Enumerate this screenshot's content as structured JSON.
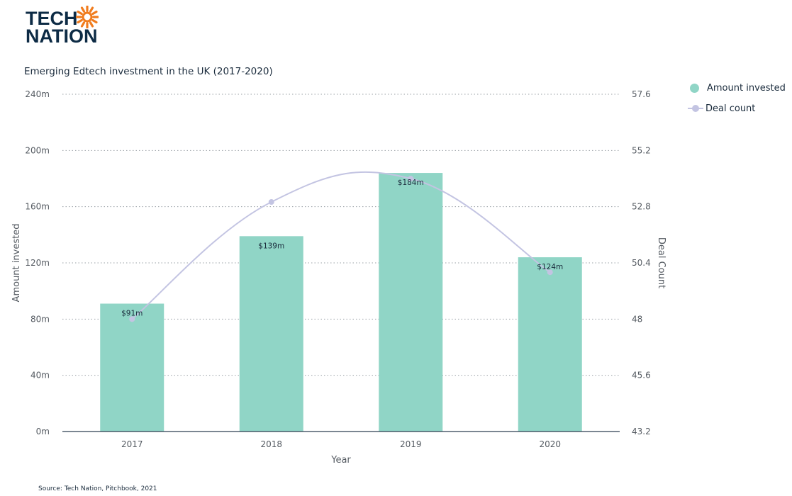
{
  "logo": {
    "line1": "TECH",
    "line2": "NATION",
    "sun_color": "#f07c1e"
  },
  "title": "Emerging Edtech investment in the UK (2017-2020)",
  "source": "Source: Tech Nation, Pitchbook, 2021",
  "colors": {
    "bar": "#90d5c6",
    "line": "#c3c4e2",
    "text": "#1a2b3c",
    "grid": "#9aa0a6",
    "axis": "#2c3e50"
  },
  "legend": [
    {
      "label": "Amount invested",
      "type": "bar"
    },
    {
      "label": "Deal count",
      "type": "line"
    }
  ],
  "chart_data": {
    "type": "bar",
    "categories": [
      "2017",
      "2018",
      "2019",
      "2020"
    ],
    "xlabel": "Year",
    "ylabel": "Amount invested",
    "y2label": "Deal Count",
    "ylim": [
      0,
      240
    ],
    "y_ticks": [
      "0m",
      "40m",
      "80m",
      "120m",
      "160m",
      "200m",
      "240m"
    ],
    "y2lim": [
      43.2,
      57.6
    ],
    "y2_ticks": [
      "43.2",
      "45.6",
      "48",
      "50.4",
      "52.8",
      "55.2",
      "57.6"
    ],
    "grid": true,
    "legend_position": "top-right",
    "series": [
      {
        "name": "Amount invested",
        "type": "bar",
        "axis": "left",
        "values": [
          91,
          139,
          184,
          124
        ],
        "labels": [
          "$91m",
          "$139m",
          "$184m",
          "$124m"
        ]
      },
      {
        "name": "Deal count",
        "type": "line",
        "axis": "right",
        "smooth": true,
        "values": [
          48,
          53,
          54,
          50
        ]
      }
    ]
  }
}
